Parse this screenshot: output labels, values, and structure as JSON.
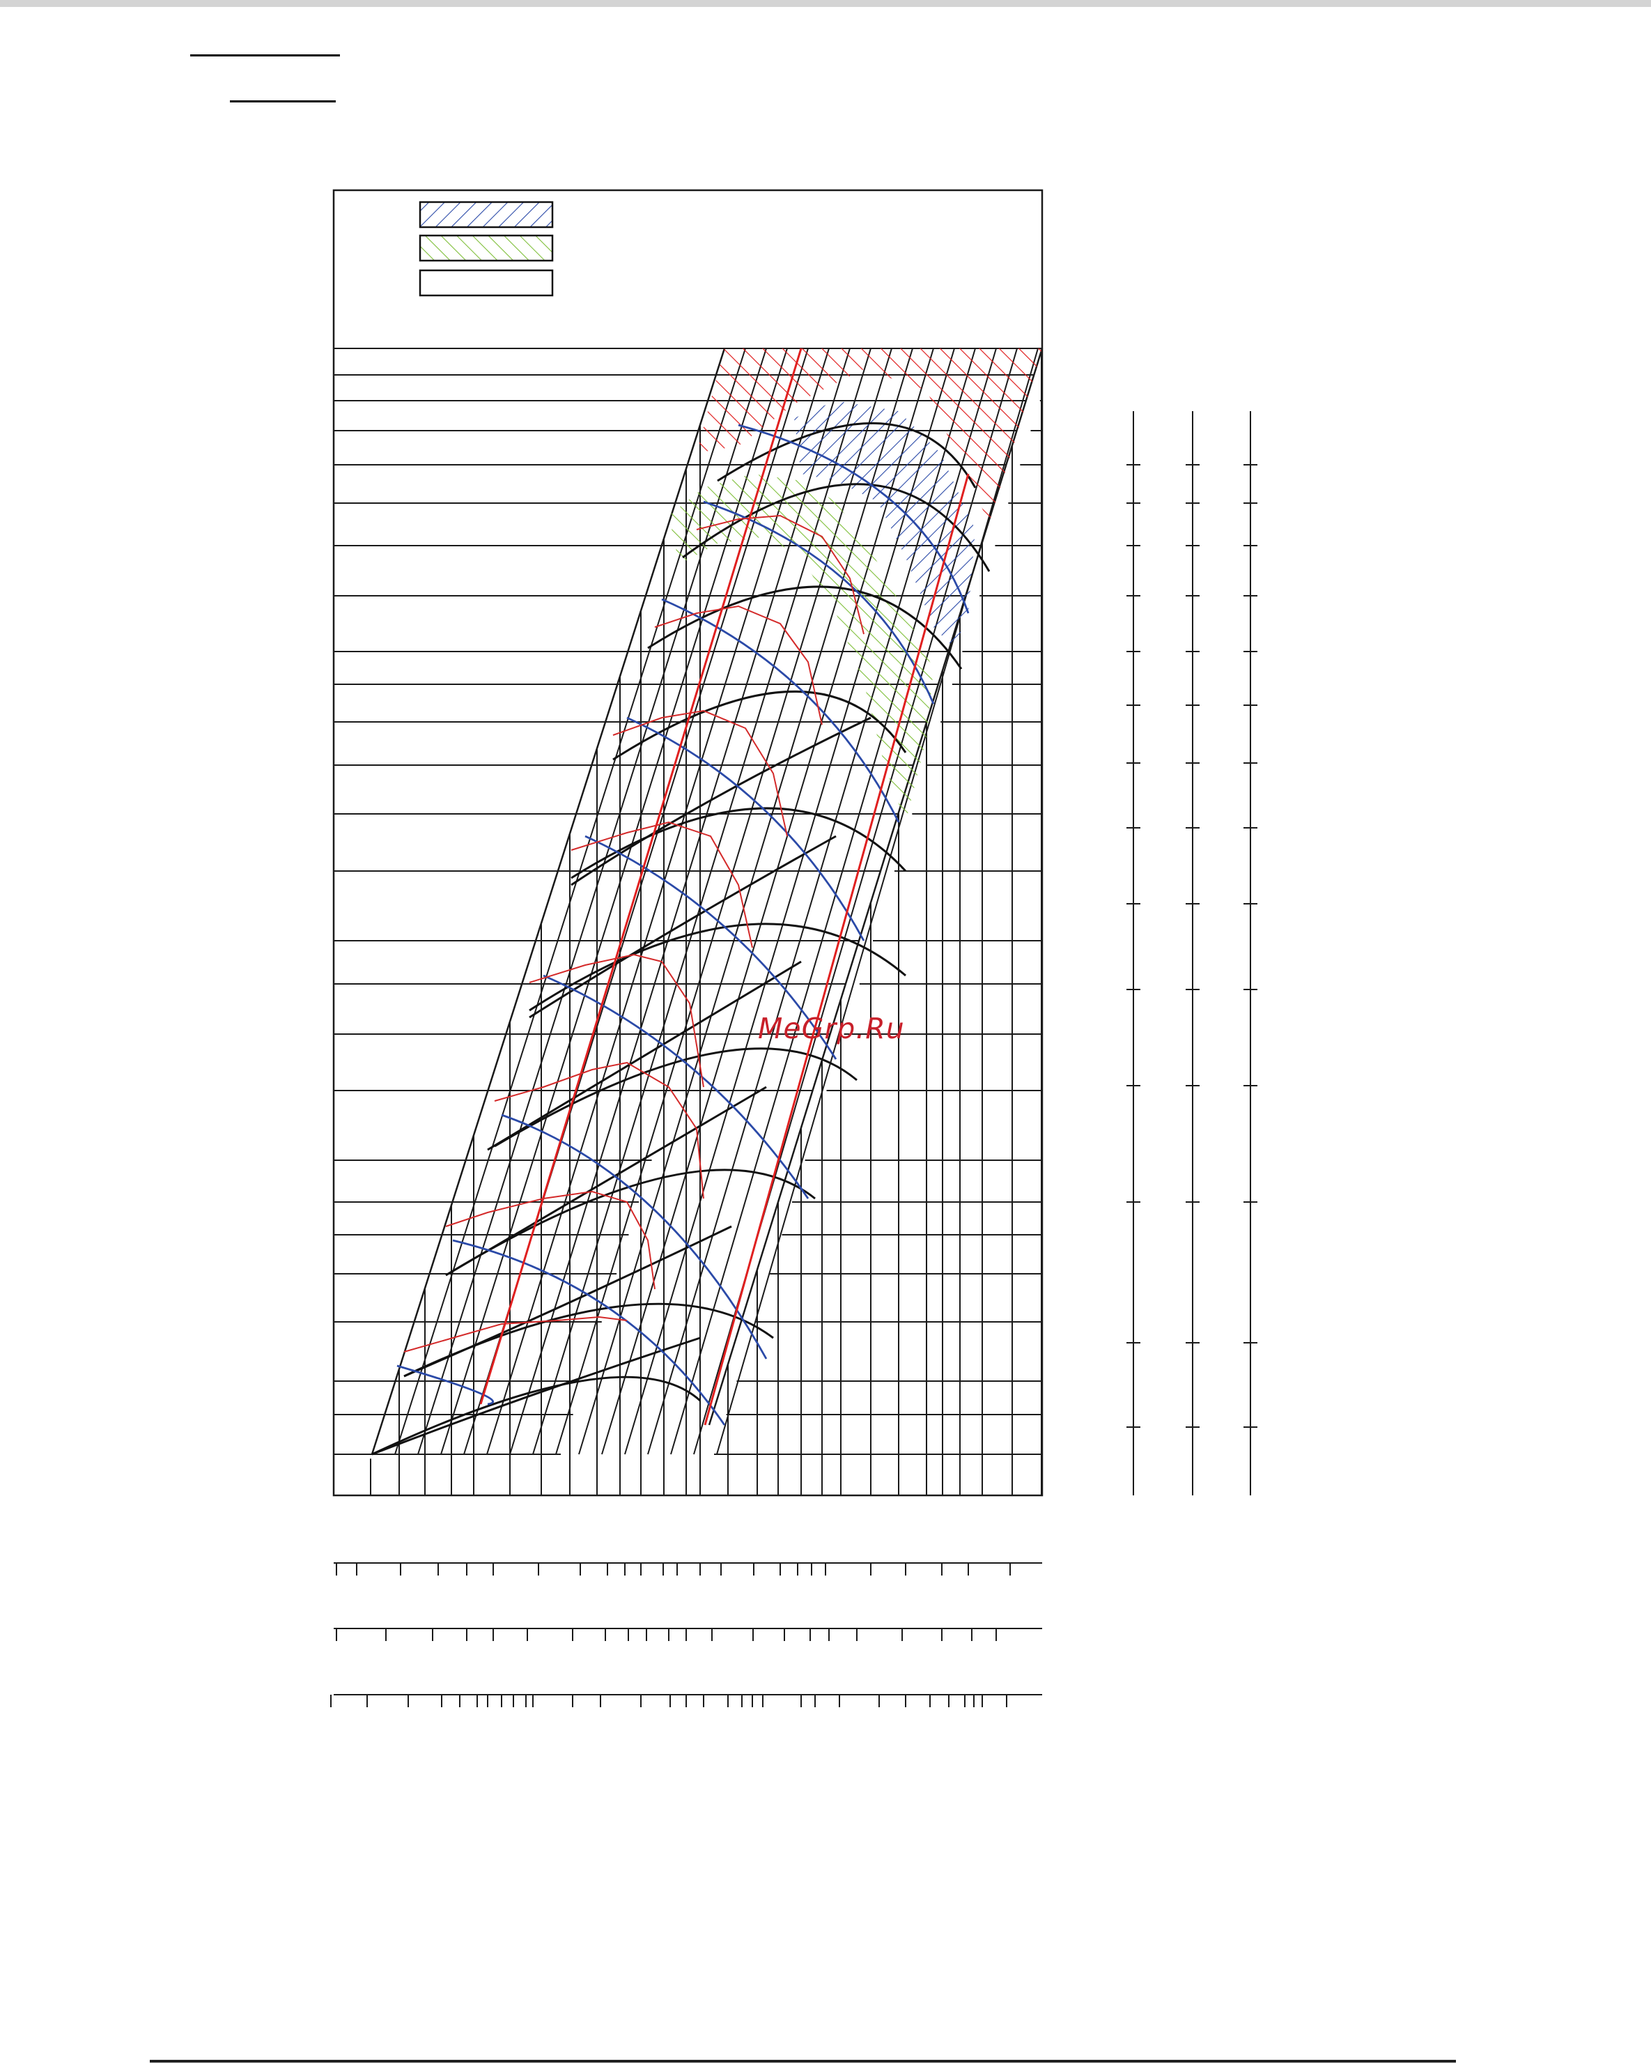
{
  "watermark": "MeGrp.Ru",
  "colors": {
    "frame": "#1a1a1a",
    "pump_curves": "#111111",
    "efficiency_curves": "#2b4aa8",
    "npsh_curves": "#d42a2a",
    "operating_band_lines": "#e02020",
    "zone_recommended_hatch": "#2b4aa8",
    "zone_allowed_hatch": "#7fbf3a",
    "zone_excluded_hatch": "#e02020"
  },
  "chart_data": {
    "type": "line",
    "title": "",
    "xlabel": "",
    "ylabel": "",
    "legend": {
      "placement": "top-left",
      "entries": [
        {
          "name": "",
          "pattern": "blue-hatch"
        },
        {
          "name": "",
          "pattern": "green-hatch"
        },
        {
          "name": "",
          "pattern": "blank"
        }
      ]
    },
    "grid": true,
    "tick_labels": [],
    "x_scales": 3,
    "y_scales": 3,
    "series": []
  }
}
